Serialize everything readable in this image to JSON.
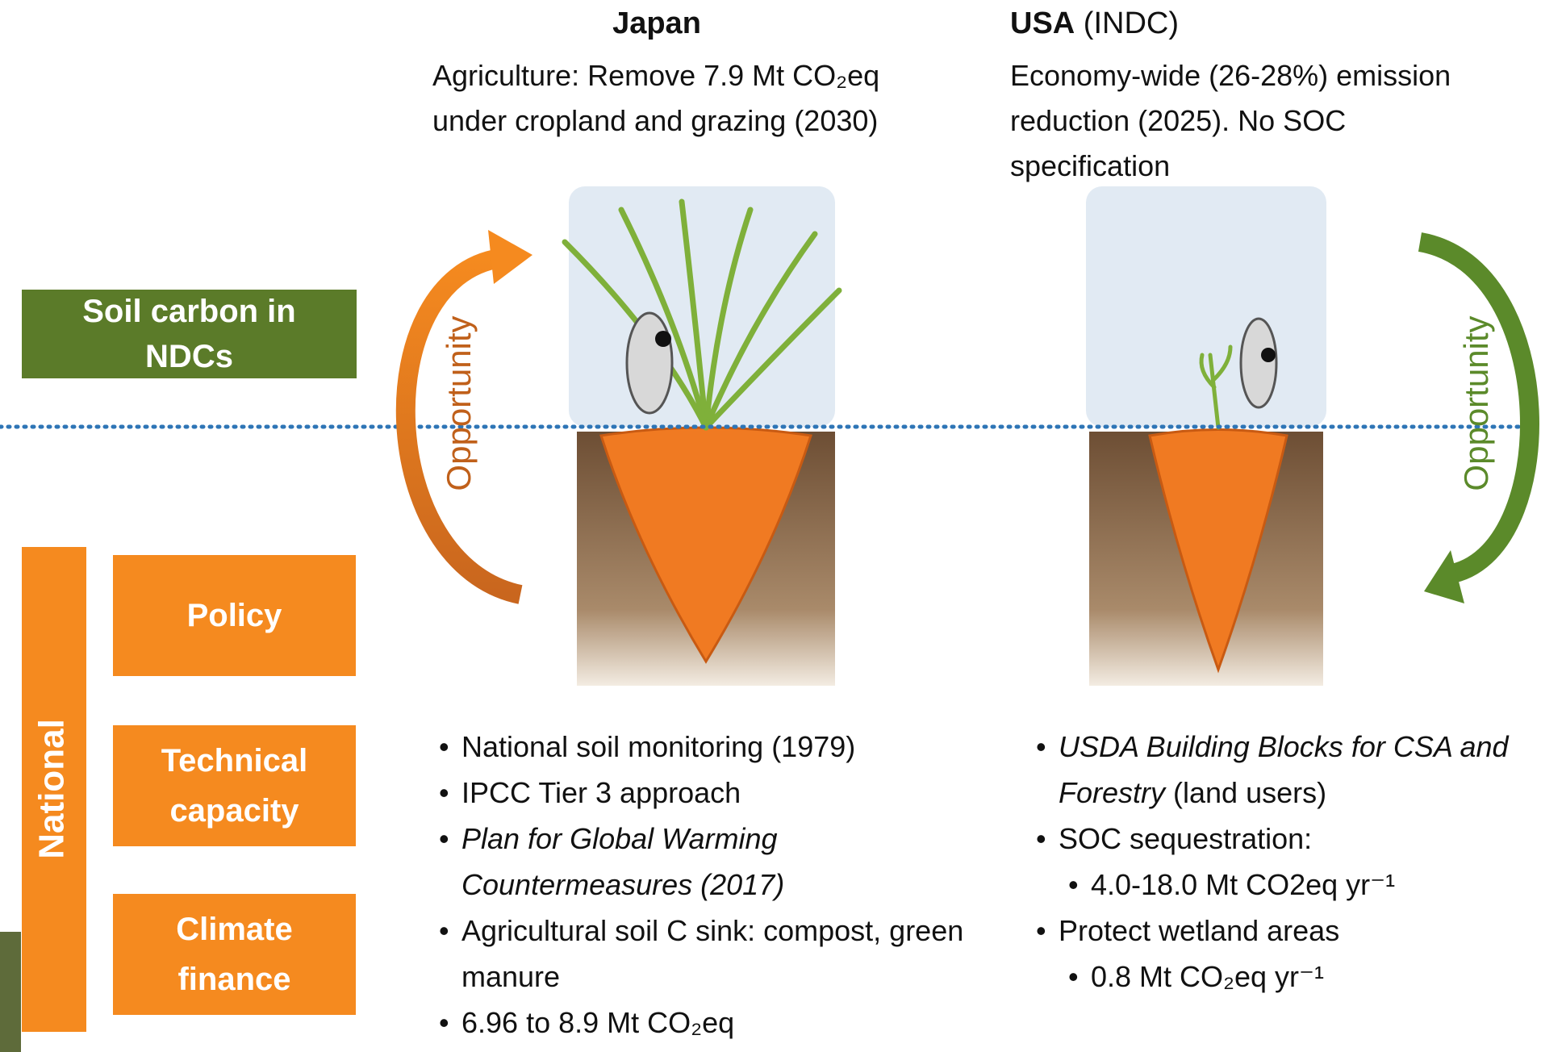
{
  "left_panel": {
    "ndc_label": "Soil carbon in NDCs",
    "national_label": "National",
    "boxes": [
      "Policy",
      "Technical capacity",
      "Climate finance"
    ]
  },
  "arrows": {
    "left": "Opportunity",
    "right": "Opportunity"
  },
  "japan": {
    "title": "Japan",
    "summary": "Agriculture: Remove 7.9 Mt CO₂eq under cropland and grazing (2030)",
    "bullets": [
      {
        "level": 1,
        "parts": [
          {
            "text": "National soil monitoring (1979)"
          }
        ]
      },
      {
        "level": 1,
        "parts": [
          {
            "text": "IPCC Tier 3 approach"
          }
        ]
      },
      {
        "level": 1,
        "parts": [
          {
            "text": "Plan for Global Warming Countermeasures (2017)",
            "italic": true
          }
        ]
      },
      {
        "level": 1,
        "parts": [
          {
            "text": "Agricultural soil C sink: compost, green manure"
          }
        ]
      },
      {
        "level": 1,
        "parts": [
          {
            "text": "6.96 to 8.9 Mt CO₂eq"
          }
        ]
      }
    ]
  },
  "usa": {
    "title": "USA",
    "title_note": "(INDC)",
    "summary": "Economy-wide (26-28%) emission reduction (2025). No SOC specification",
    "bullets": [
      {
        "level": 1,
        "parts": [
          {
            "text": "USDA Building Blocks for CSA and Forestry",
            "italic": true
          },
          {
            "text": " (land users)"
          }
        ]
      },
      {
        "level": 1,
        "parts": [
          {
            "text": "SOC sequestration:"
          }
        ]
      },
      {
        "level": 2,
        "parts": [
          {
            "text": "4.0-18.0 Mt CO2eq yr⁻¹"
          }
        ]
      },
      {
        "level": 1,
        "parts": [
          {
            "text": "Protect wetland areas"
          }
        ]
      },
      {
        "level": 2,
        "parts": [
          {
            "text": "0.8 Mt CO₂eq yr⁻¹"
          }
        ]
      }
    ]
  }
}
